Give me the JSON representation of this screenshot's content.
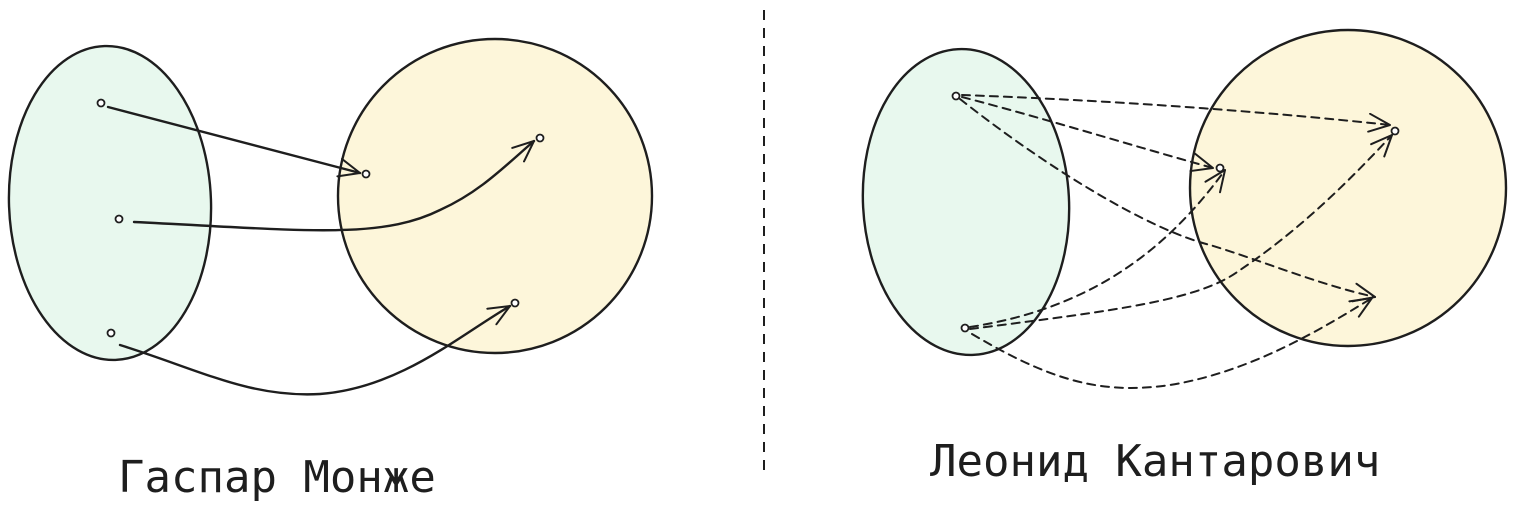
{
  "labels": {
    "monge": "Гаспар Монже",
    "kantorovich": "Леонид Кантарович"
  },
  "colors": {
    "ink": "#1e1e1e",
    "source_fill": "#e8f8ee",
    "target_fill": "#fdf6da"
  }
}
